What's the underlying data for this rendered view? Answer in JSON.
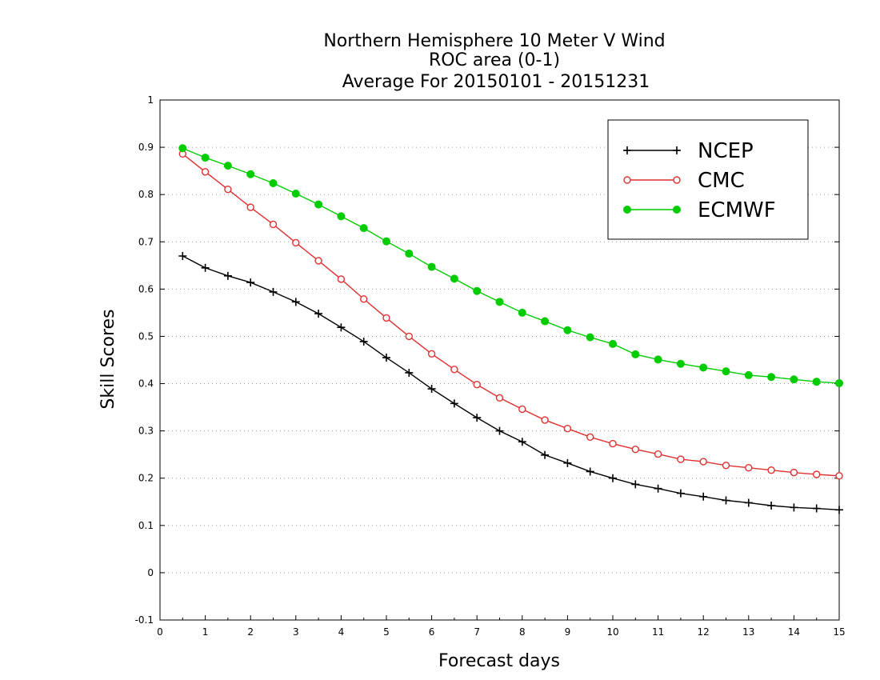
{
  "chart_data": {
    "type": "line",
    "title": [
      "Northern Hemisphere 10 Meter V Wind",
      "ROC area (0-1)",
      "Average For 20150101 - 20151231"
    ],
    "xlabel": "Forecast days",
    "ylabel": "Skill Scores",
    "xlim": [
      0,
      15
    ],
    "ylim": [
      -0.1,
      1
    ],
    "x_ticks": [
      0,
      1,
      2,
      3,
      4,
      5,
      6,
      7,
      8,
      9,
      10,
      11,
      12,
      13,
      14,
      15
    ],
    "x_tick_labels": [
      "0",
      "1",
      "2",
      "3",
      "4",
      "5",
      "6",
      "7",
      "8",
      "9",
      "10",
      "11",
      "12",
      "13",
      "14",
      "15"
    ],
    "y_ticks": [
      -0.1,
      0,
      0.1,
      0.2,
      0.3,
      0.4,
      0.5,
      0.6,
      0.7,
      0.8,
      0.9,
      1
    ],
    "y_tick_labels": [
      "-0.1",
      "0",
      "0.1",
      "0.2",
      "0.3",
      "0.4",
      "0.5",
      "0.6",
      "0.7",
      "0.8",
      "0.9",
      "1"
    ],
    "grid": "horizontal dotted",
    "legend_position": "top-right",
    "x": [
      0.5,
      1,
      1.5,
      2,
      2.5,
      3,
      3.5,
      4,
      4.5,
      5,
      5.5,
      6,
      6.5,
      7,
      7.5,
      8,
      8.5,
      9,
      9.5,
      10,
      10.5,
      11,
      11.5,
      12,
      12.5,
      13,
      13.5,
      14,
      14.5,
      15
    ],
    "series": [
      {
        "name": "NCEP",
        "color": "#000000",
        "marker": "plus",
        "values": [
          0.67,
          0.645,
          0.628,
          0.614,
          0.594,
          0.573,
          0.548,
          0.519,
          0.489,
          0.455,
          0.423,
          0.389,
          0.358,
          0.328,
          0.3,
          0.277,
          0.249,
          0.232,
          0.214,
          0.2,
          0.187,
          0.178,
          0.168,
          0.161,
          0.153,
          0.148,
          0.142,
          0.138,
          0.136,
          0.133
        ]
      },
      {
        "name": "CMC",
        "color": "#e03030",
        "marker": "open-circle",
        "values": [
          0.886,
          0.848,
          0.811,
          0.773,
          0.737,
          0.698,
          0.66,
          0.621,
          0.579,
          0.539,
          0.5,
          0.463,
          0.43,
          0.398,
          0.37,
          0.346,
          0.323,
          0.305,
          0.287,
          0.273,
          0.261,
          0.251,
          0.24,
          0.235,
          0.227,
          0.222,
          0.217,
          0.212,
          0.208,
          0.205
        ]
      },
      {
        "name": "ECMWF",
        "color": "#00cc00",
        "marker": "filled-circle",
        "values": [
          0.898,
          0.878,
          0.861,
          0.843,
          0.824,
          0.802,
          0.779,
          0.754,
          0.729,
          0.701,
          0.675,
          0.647,
          0.622,
          0.596,
          0.573,
          0.55,
          0.532,
          0.513,
          0.498,
          0.484,
          0.462,
          0.451,
          0.442,
          0.434,
          0.426,
          0.418,
          0.414,
          0.409,
          0.404,
          0.401
        ]
      }
    ]
  }
}
